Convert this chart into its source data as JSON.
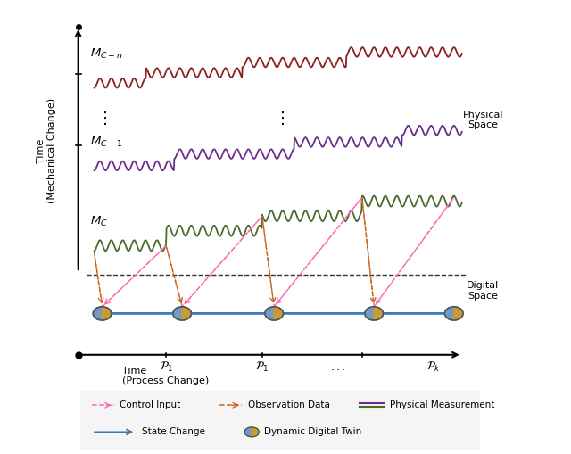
{
  "bg_color": "#ffffff",
  "mc_n_color": "#8B2020",
  "mc_1_color": "#6B2D8B",
  "mc_c_color": "#4B6B2B",
  "digital_line_color": "#3A7AB5",
  "dashed_divider_color": "#333333",
  "control_input_color": "#FF69B4",
  "observation_color": "#CC6622",
  "node_left_color": "#7799BB",
  "node_right_color": "#CC9933",
  "node_outline_color": "#445566",
  "y_mech_label": "Time\n(Mechanical Change)",
  "x_proc_label": "Time\n(Process Change)",
  "mc_n_label": "$M_{C-n}$",
  "mc_1_label": "$M_{C-1}$",
  "mc_c_label": "$M_{C}$",
  "p1_label": "$\\mathcal{P}_1$",
  "p1b_label": "$\\mathcal{P}_1$",
  "pdots_label": "$...$",
  "pk_label": "$\\mathcal{P}_k$",
  "physical_space_label": "Physical\nSpace",
  "digital_space_label": "Digital\nSpace",
  "legend_ctrl": "Control Input",
  "legend_obs": "Observation Data",
  "legend_phys": "Physical Measurement",
  "legend_state": "State Change",
  "legend_ddt": "Dynamic Digital Twin"
}
